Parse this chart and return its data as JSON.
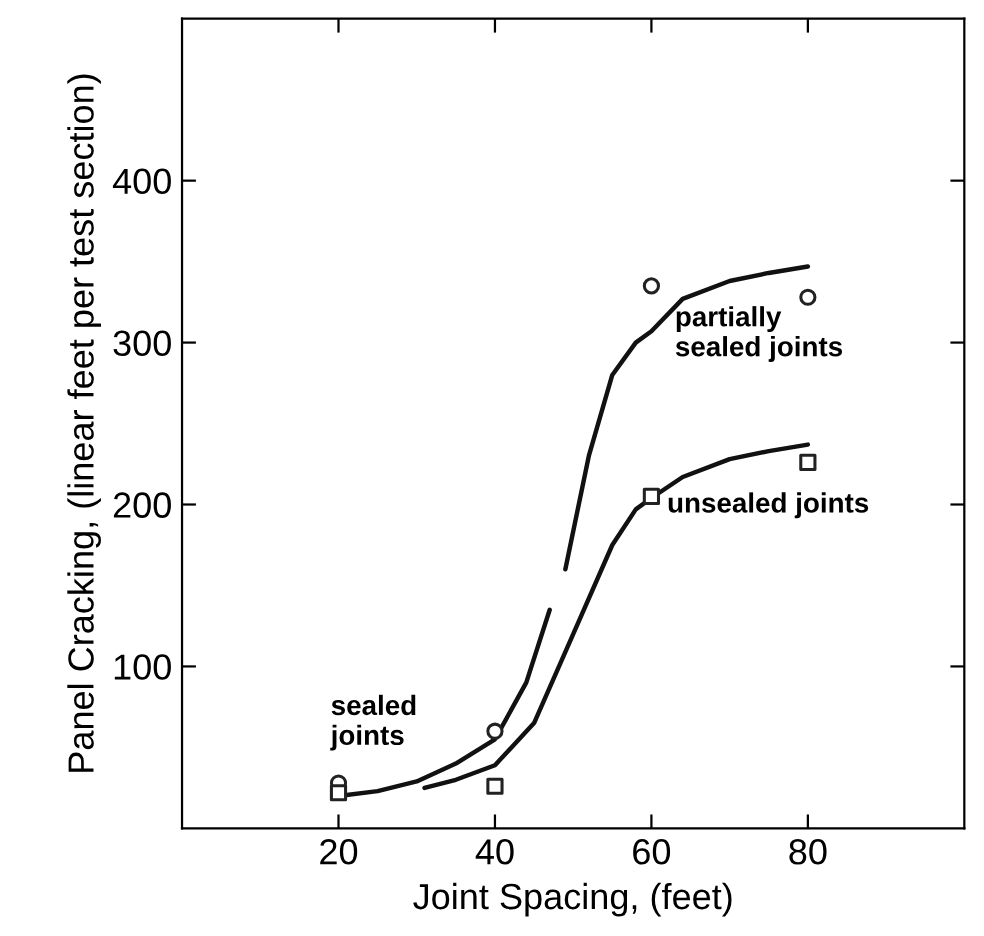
{
  "chart_data": {
    "type": "scatter",
    "xlabel": "Joint Spacing, (feet)",
    "ylabel": "Panel Cracking, (linear feet per test section)",
    "xlim": [
      0,
      100
    ],
    "ylim": [
      0,
      500
    ],
    "xticks": [
      20,
      40,
      60,
      80
    ],
    "yticks": [
      100,
      200,
      300,
      400
    ],
    "grid": false,
    "series": [
      {
        "marker": "circle",
        "color": "#222222",
        "x": [
          20,
          40,
          60,
          80
        ],
        "values": [
          28,
          60,
          335,
          328
        ]
      },
      {
        "marker": "square",
        "color": "#222222",
        "x": [
          20,
          40,
          60,
          80
        ],
        "values": [
          22,
          26,
          205,
          226
        ]
      },
      {
        "type": "line",
        "marker": "none",
        "line_style": "solid",
        "color": "#111111",
        "x": [
          20,
          25,
          30,
          35,
          40,
          44,
          47,
          48,
          49,
          52,
          55,
          58,
          60,
          64,
          70,
          75,
          80
        ],
        "values": [
          20,
          23,
          29,
          40,
          55,
          90,
          135,
          null,
          160,
          230,
          280,
          300,
          307,
          327,
          338,
          343,
          347
        ]
      },
      {
        "type": "line",
        "marker": "none",
        "line_style": "solid",
        "color": "#111111",
        "x": [
          31,
          35,
          40,
          45,
          50,
          55,
          58,
          60,
          64,
          70,
          75,
          80
        ],
        "values": [
          25,
          30,
          39,
          65,
          120,
          175,
          197,
          204,
          217,
          228,
          233,
          237
        ]
      }
    ],
    "annotations": [
      "partially\nsealed joints",
      "unsealed joints",
      "sealed\njoints"
    ]
  }
}
